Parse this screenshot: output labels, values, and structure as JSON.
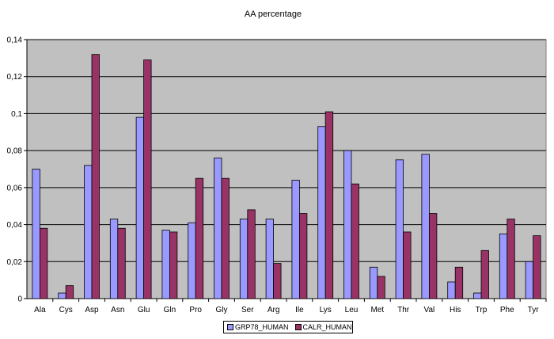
{
  "chart_data": {
    "type": "bar",
    "title": "AA percentage",
    "xlabel": "",
    "ylabel": "",
    "ylim": [
      0,
      0.14
    ],
    "yticks": [
      "0",
      "0,02",
      "0,04",
      "0,06",
      "0,08",
      "0,1",
      "0,12",
      "0,14"
    ],
    "categories": [
      "Ala",
      "Cys",
      "Asp",
      "Asn",
      "Glu",
      "Gln",
      "Pro",
      "Gly",
      "Ser",
      "Arg",
      "Ile",
      "Lys",
      "Leu",
      "Met",
      "Thr",
      "Val",
      "His",
      "Trp",
      "Phe",
      "Tyr"
    ],
    "series": [
      {
        "name": "GRP78_HUMAN",
        "color": "#9999ff",
        "values": [
          0.07,
          0.003,
          0.072,
          0.043,
          0.098,
          0.037,
          0.041,
          0.076,
          0.043,
          0.043,
          0.064,
          0.093,
          0.08,
          0.017,
          0.075,
          0.078,
          0.009,
          0.003,
          0.035,
          0.02
        ]
      },
      {
        "name": "CALR_HUMAN",
        "color": "#993366",
        "values": [
          0.038,
          0.007,
          0.132,
          0.038,
          0.129,
          0.036,
          0.065,
          0.065,
          0.048,
          0.019,
          0.046,
          0.101,
          0.062,
          0.012,
          0.036,
          0.046,
          0.017,
          0.026,
          0.043,
          0.034
        ]
      }
    ],
    "plot_background": "#c0c0c0",
    "grid": true,
    "legend_position": "bottom"
  }
}
